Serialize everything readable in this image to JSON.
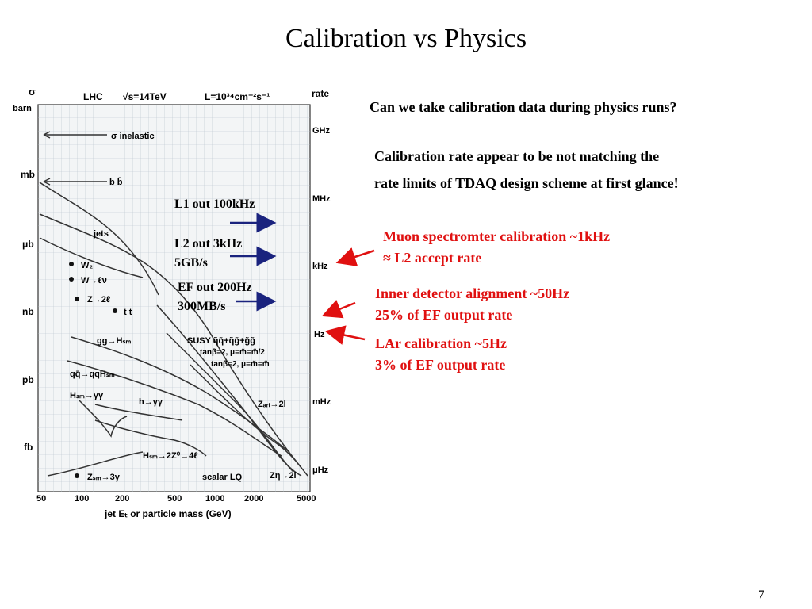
{
  "slide": {
    "title": "Calibration vs Physics",
    "question": "Can we take calibration data during physics runs?",
    "calib_line1": "Calibration rate appear to be not matching the",
    "calib_line2": "rate limits of TDAQ design scheme at first glance!",
    "muon_line1": "Muon spectromter calibration ~1kHz",
    "muon_line2": "≈ L2 accept rate",
    "inner_line1": "Inner detector alignment ~50Hz",
    "inner_line2": "25% of EF output rate",
    "lar_line1": "LAr calibration ~5Hz",
    "lar_line2": "3% of EF output rate",
    "page_number": "7"
  },
  "annotations": {
    "l1": "L1 out 100kHz",
    "l2_line1": "L2 out 3kHz",
    "l2_line2": "5GB/s",
    "ef_line1": "EF out 200Hz",
    "ef_line2": "300MB/s"
  },
  "plot": {
    "header_left": "LHC",
    "header_mid": "√s=14TeV",
    "header_lumi": "L=10³⁴cm⁻²s⁻¹",
    "sigma_label": "σ",
    "barn_label": "barn",
    "rate_label": "rate",
    "y_left": [
      "mb",
      "μb",
      "nb",
      "pb",
      "fb"
    ],
    "y_right": [
      "GHz",
      "MHz",
      "kHz",
      "Hz",
      "mHz",
      "μHz"
    ],
    "x_ticks": [
      "50",
      "100",
      "200",
      "500",
      "1000",
      "2000",
      "5000"
    ],
    "x_label": "jet Eₜ or particle mass (GeV)",
    "curve_labels": {
      "inelastic": "σ inelastic",
      "bb": "b b̄",
      "jets": "jets",
      "wz": "W₂",
      "wlnu": "W→ℓν",
      "z2l": "Z→2ℓ",
      "tt": "t t̄",
      "gghsm": "gg→Hₛₘ",
      "susy1": "SUSY q̃q̃+q̃g̃+g̃g̃",
      "susy2": "tanβ=2, μ=m̃=m̃/2",
      "susy3": "tanβ=2, μ=m̃=m̃",
      "qqhsm": "qq̄→qqHₛₘ",
      "hsmgg": "Hₛₘ→γγ",
      "hgg": "h→γγ",
      "zarl": "Zₐᵣₗ→2l",
      "hsm4l": "Hₛₘ→2Z⁰→4ℓ",
      "zsm3g": "Zₛₘ→3γ",
      "scalarlq": "scalar LQ",
      "zeta2l": "Zη→2l"
    }
  }
}
